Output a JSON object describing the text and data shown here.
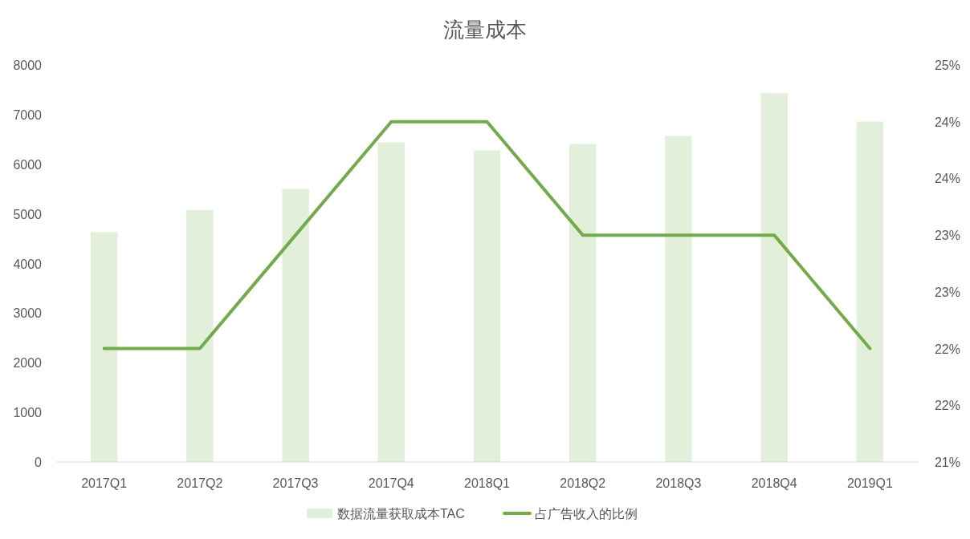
{
  "chart_data": {
    "type": "bar",
    "title": "流量成本",
    "categories": [
      "2017Q1",
      "2017Q2",
      "2017Q3",
      "2017Q4",
      "2018Q1",
      "2018Q2",
      "2018Q3",
      "2018Q4",
      "2019Q1"
    ],
    "series": [
      {
        "name": "数据流量获取成本TAC",
        "color": "#e2efda",
        "values": [
          4630,
          5080,
          5500,
          6440,
          6280,
          6410,
          6570,
          7430,
          6860
        ]
      },
      {
        "name": "占广告收入的比例",
        "type": "line",
        "axis": "y2",
        "color": "#70ad47",
        "values": [
          22,
          22,
          23,
          24,
          24,
          23,
          23,
          23,
          22
        ]
      }
    ],
    "ylim": [
      0,
      8000
    ],
    "yticks": [
      0,
      1000,
      2000,
      3000,
      4000,
      5000,
      6000,
      7000,
      8000
    ],
    "y2lim": [
      21,
      24.5
    ],
    "y2ticks": [
      {
        "value": 21,
        "label": "21%"
      },
      {
        "value": 21.5,
        "label": "22%"
      },
      {
        "value": 22,
        "label": "22%"
      },
      {
        "value": 22.5,
        "label": "23%"
      },
      {
        "value": 23,
        "label": "23%"
      },
      {
        "value": 23.5,
        "label": "24%"
      },
      {
        "value": 24,
        "label": "24%"
      },
      {
        "value": 24.5,
        "label": "25%"
      }
    ],
    "legend": "bottom",
    "grid": false,
    "marker": "none",
    "line_style": "solid"
  }
}
